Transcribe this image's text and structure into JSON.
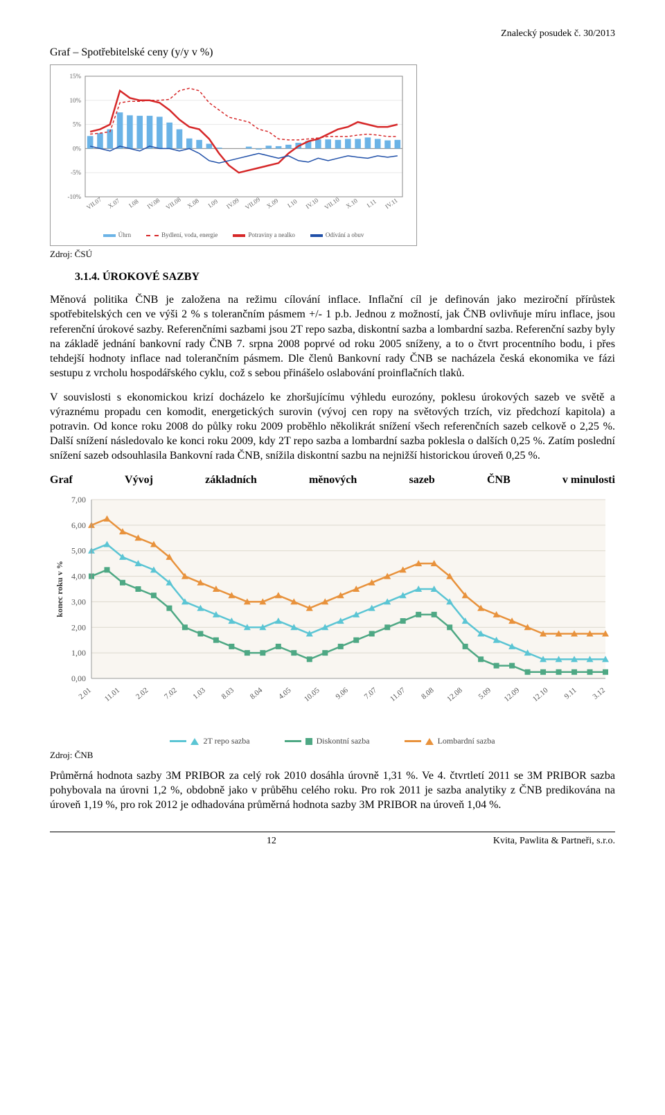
{
  "header_right": "Znalecký posudek č. 30/2013",
  "chart1": {
    "title": "Graf – Spotřebitelské ceny (y/y v %)",
    "source": "Zdroj: ČSÚ",
    "x_labels": [
      "VII.07",
      "X.07",
      "I.08",
      "IV.08",
      "VII.08",
      "X.08",
      "I.09",
      "IV.09",
      "VII.09",
      "X.09",
      "I.10",
      "IV.10",
      "VII.10",
      "X.10",
      "I.11",
      "IV.11"
    ],
    "y_ticks": [
      -10,
      -5,
      0,
      5,
      10,
      15
    ],
    "ylim": [
      -10,
      15
    ],
    "bars": {
      "label": "Úhrn",
      "color": "#6bb3e6",
      "values": [
        2.6,
        3.2,
        4.0,
        7.5,
        6.9,
        6.8,
        6.8,
        6.6,
        5.4,
        4.0,
        2.1,
        1.8,
        1.0,
        0.2,
        0.0,
        0.0,
        0.4,
        -0.2,
        0.6,
        0.5,
        0.8,
        1.2,
        1.6,
        1.9,
        1.9,
        1.8,
        2.0,
        2.0,
        2.3,
        2.0,
        1.7,
        1.8
      ]
    },
    "line_red_solid": {
      "label": "Potraviny a nealko",
      "color": "#d62728",
      "values": [
        3.5,
        4.0,
        5.0,
        12.0,
        10.5,
        10.0,
        10.0,
        9.5,
        8.0,
        6.0,
        4.5,
        4.0,
        2.0,
        -1.0,
        -3.5,
        -5.0,
        -4.5,
        -4.0,
        -3.5,
        -3.0,
        -1.0,
        0.5,
        1.5,
        2.0,
        3.0,
        4.0,
        4.5,
        5.5,
        5.0,
        4.5,
        4.5,
        5.0
      ]
    },
    "line_red_dashed": {
      "label": "Bydlení, voda, energie",
      "color": "#d62728",
      "values": [
        3.0,
        3.2,
        3.5,
        9.5,
        9.8,
        9.8,
        10.0,
        10.0,
        10.2,
        12.0,
        12.5,
        12.0,
        9.5,
        8.0,
        6.5,
        6.0,
        5.5,
        4.0,
        3.5,
        2.0,
        1.8,
        1.8,
        2.0,
        2.2,
        2.5,
        2.5,
        2.5,
        2.8,
        3.0,
        2.8,
        2.5,
        2.5
      ]
    },
    "line_blue": {
      "label": "Odívání a obuv",
      "color": "#1f4fa8",
      "values": [
        0.5,
        0.0,
        -0.5,
        0.5,
        0.0,
        -0.5,
        0.5,
        0.0,
        0.0,
        -0.5,
        0.0,
        -1.0,
        -2.5,
        -3.0,
        -2.5,
        -2.0,
        -1.5,
        -1.0,
        -1.5,
        -2.0,
        -1.5,
        -2.5,
        -2.8,
        -2.0,
        -2.5,
        -2.0,
        -1.5,
        -1.8,
        -2.0,
        -1.5,
        -1.8,
        -1.5
      ]
    },
    "background_color": "#ffffff",
    "grid_color": "#e8e8e8",
    "axis_color": "#888888",
    "label_fontsize": 9
  },
  "section": {
    "number": "3.1.4.",
    "title": "ÚROKOVÉ SAZBY"
  },
  "para1": "Měnová politika ČNB je založena na režimu cílování inflace. Inflační cíl je definován jako meziroční přírůstek spotřebitelských cen ve výši 2 % s tolerančním pásmem +/- 1 p.b. Jednou z možností, jak ČNB ovlivňuje míru inflace, jsou referenční úrokové sazby. Referenčními sazbami jsou 2T repo sazba, diskontní sazba a lombardní sazba. Referenční sazby byly na základě jednání bankovní rady ČNB 7. srpna 2008 poprvé od roku 2005 sníženy, a to o čtvrt procentního bodu, i přes tehdejší hodnoty inflace nad tolerančním pásmem. Dle členů Bankovní rady ČNB se nacházela česká ekonomika ve fázi sestupu z vrcholu hospodářského cyklu, což s sebou přinášelo oslabování proinflačních tlaků.",
  "para2": "V souvislosti s ekonomickou krizí docházelo ke zhoršujícímu výhledu eurozóny, poklesu úrokových sazeb ve světě a výraznému propadu cen komodit, energetických surovin (vývoj cen ropy na světových trzích, viz předchozí kapitola) a potravin. Od konce roku 2008 do půlky roku 2009 proběhlo několikrát snížení všech referenčních sazeb celkově o 2,25 %. Další snížení následovalo ke konci roku 2009, kdy 2T repo sazba a lombardní sazba poklesla o dalších 0,25 %. Zatím poslední snížení sazeb odsouhlasila Bankovní rada ČNB, snížila diskontní sazbu na nejnižší historickou úroveň 0,25 %.",
  "graf_line": {
    "w1": "Graf",
    "w2": "Vývoj",
    "w3": "základních",
    "w4": "měnových",
    "w5": "sazeb",
    "w6": "ČNB",
    "w7": "v minulosti"
  },
  "chart2": {
    "source": "Zdroj: ČNB",
    "y_ticks": [
      "0,00",
      "1,00",
      "2,00",
      "3,00",
      "4,00",
      "5,00",
      "6,00",
      "7,00"
    ],
    "ylim": [
      0,
      7
    ],
    "ylabel": "konec roku v %",
    "x_labels": [
      "2.01",
      "11.01",
      "2.02",
      "7.02",
      "1.03",
      "8.03",
      "8.04",
      "4.05",
      "10.05",
      "9.06",
      "7.07",
      "11.07",
      "8.08",
      "12.08",
      "5.09",
      "12.09",
      "12.10",
      "9.11",
      "3.12"
    ],
    "background_color": "#f9f6f1",
    "grid_color": "#dcd8ce",
    "series": {
      "repo": {
        "label": "2T repo sazba",
        "color": "#5bc5d4",
        "marker": "triangle",
        "values": [
          5.0,
          5.25,
          4.75,
          4.5,
          4.25,
          3.75,
          3.0,
          2.75,
          2.5,
          2.25,
          2.0,
          2.0,
          2.25,
          2.0,
          1.75,
          2.0,
          2.25,
          2.5,
          2.75,
          3.0,
          3.25,
          3.5,
          3.5,
          3.0,
          2.25,
          1.75,
          1.5,
          1.25,
          1.0,
          0.75,
          0.75,
          0.75,
          0.75,
          0.75
        ]
      },
      "disk": {
        "label": "Diskontní sazba",
        "color": "#4ea884",
        "marker": "square",
        "values": [
          4.0,
          4.25,
          3.75,
          3.5,
          3.25,
          2.75,
          2.0,
          1.75,
          1.5,
          1.25,
          1.0,
          1.0,
          1.25,
          1.0,
          0.75,
          1.0,
          1.25,
          1.5,
          1.75,
          2.0,
          2.25,
          2.5,
          2.5,
          2.0,
          1.25,
          0.75,
          0.5,
          0.5,
          0.25,
          0.25,
          0.25,
          0.25,
          0.25,
          0.25
        ]
      },
      "lomb": {
        "label": "Lombardní sazba",
        "color": "#e8923c",
        "marker": "triangle",
        "values": [
          6.0,
          6.25,
          5.75,
          5.5,
          5.25,
          4.75,
          4.0,
          3.75,
          3.5,
          3.25,
          3.0,
          3.0,
          3.25,
          3.0,
          2.75,
          3.0,
          3.25,
          3.5,
          3.75,
          4.0,
          4.25,
          4.5,
          4.5,
          4.0,
          3.25,
          2.75,
          2.5,
          2.25,
          2.0,
          1.75,
          1.75,
          1.75,
          1.75,
          1.75
        ]
      }
    },
    "label_fontsize": 12
  },
  "para3": "Průměrná hodnota sazby 3M PRIBOR za celý rok 2010 dosáhla úrovně 1,31 %. Ve 4. čtvrtletí 2011 se 3M PRIBOR sazba pohybovala na úrovni 1,2 %, obdobně jako v průběhu celého roku. Pro rok 2011 je sazba analytiky z ČNB predikována na úroveň 1,19 %, pro rok 2012 je odhadována průměrná hodnota sazby 3M PRIBOR na úroveň 1,04 %.",
  "footer": {
    "page": "12",
    "right": "Kvita, Pawlita & Partneři, s.r.o."
  }
}
